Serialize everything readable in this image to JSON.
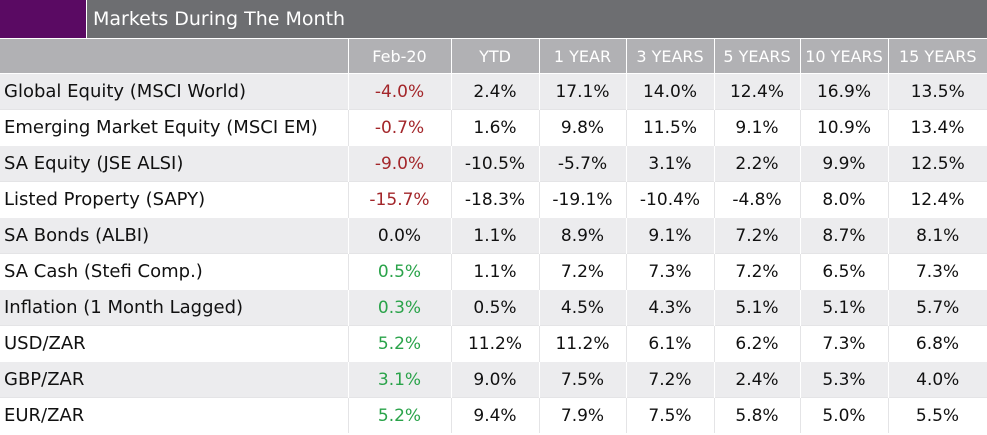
{
  "title": "Markets During The Month",
  "colors": {
    "title_bar": "#6d6e71",
    "title_swatch": "#5a0a63",
    "header": "#b1b1b4",
    "negative": "#a3262a",
    "positive": "#2aa34a"
  },
  "headers": [
    "",
    "Feb-20",
    "YTD",
    "1 YEAR",
    "3 YEARS",
    "5 YEARS",
    "10 YEARS",
    "15 YEARS"
  ],
  "rows": [
    {
      "label": "Global Equity (MSCI World)",
      "month_tone": "neg",
      "values": [
        "-4.0%",
        "2.4%",
        "17.1%",
        "14.0%",
        "12.4%",
        "16.9%",
        "13.5%"
      ]
    },
    {
      "label": "Emerging Market Equity (MSCI EM)",
      "month_tone": "neg",
      "values": [
        "-0.7%",
        "1.6%",
        "9.8%",
        "11.5%",
        "9.1%",
        "10.9%",
        "13.4%"
      ]
    },
    {
      "label": "SA Equity (JSE ALSI)",
      "month_tone": "neg",
      "values": [
        "-9.0%",
        "-10.5%",
        "-5.7%",
        "3.1%",
        "2.2%",
        "9.9%",
        "12.5%"
      ]
    },
    {
      "label": "Listed Property (SAPY)",
      "month_tone": "neg",
      "values": [
        "-15.7%",
        "-18.3%",
        "-19.1%",
        "-10.4%",
        "-4.8%",
        "8.0%",
        "12.4%"
      ]
    },
    {
      "label": "SA Bonds (ALBI)",
      "month_tone": "neutral",
      "values": [
        "0.0%",
        "1.1%",
        "8.9%",
        "9.1%",
        "7.2%",
        "8.7%",
        "8.1%"
      ]
    },
    {
      "label": "SA Cash (Stefi Comp.)",
      "month_tone": "pos",
      "values": [
        "0.5%",
        "1.1%",
        "7.2%",
        "7.3%",
        "7.2%",
        "6.5%",
        "7.3%"
      ]
    },
    {
      "label": "Inflation (1 Month Lagged)",
      "month_tone": "pos",
      "values": [
        "0.3%",
        "0.5%",
        "4.5%",
        "4.3%",
        "5.1%",
        "5.1%",
        "5.7%"
      ]
    },
    {
      "label": "USD/ZAR",
      "month_tone": "pos",
      "values": [
        "5.2%",
        "11.2%",
        "11.2%",
        "6.1%",
        "6.2%",
        "7.3%",
        "6.8%"
      ]
    },
    {
      "label": "GBP/ZAR",
      "month_tone": "pos",
      "values": [
        "3.1%",
        "9.0%",
        "7.5%",
        "7.2%",
        "2.4%",
        "5.3%",
        "4.0%"
      ]
    },
    {
      "label": "EUR/ZAR",
      "month_tone": "pos",
      "values": [
        "5.2%",
        "9.4%",
        "7.9%",
        "7.5%",
        "5.8%",
        "5.0%",
        "5.5%"
      ]
    }
  ]
}
